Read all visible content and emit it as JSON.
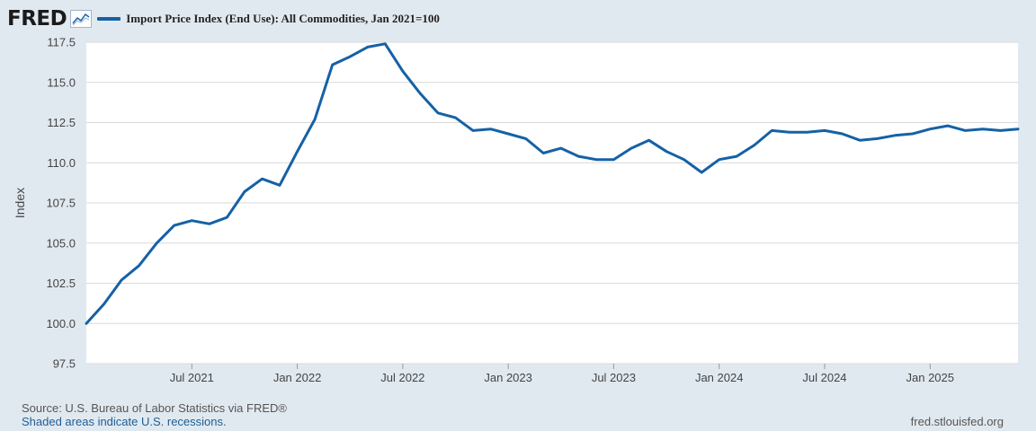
{
  "header": {
    "logo_text": "FRED",
    "logo_icon": "fred-graph-icon"
  },
  "colors": {
    "line": "#1561a5",
    "grid": "#d9d9d9",
    "plot_bg": "#ffffff",
    "page_bg": "#e1e9f0",
    "axis_text": "#444444"
  },
  "footer": {
    "source": "Source: U.S. Bureau of Labor Statistics via FRED®",
    "note": "Shaded areas indicate U.S. recessions.",
    "url": "fred.stlouisfed.org"
  },
  "chart_data": {
    "type": "line",
    "title": "",
    "ylabel": "Index",
    "xlabel": "",
    "ylim": [
      97.5,
      117.5
    ],
    "xlim": [
      "2021-01",
      "2025-06"
    ],
    "grid": true,
    "legend_position": "top-left",
    "yticks": [
      97.5,
      100.0,
      102.5,
      105.0,
      107.5,
      110.0,
      112.5,
      115.0,
      117.5
    ],
    "ytick_labels": [
      "97.5",
      "100.0",
      "102.5",
      "105.0",
      "107.5",
      "110.0",
      "112.5",
      "115.0",
      "117.5"
    ],
    "xticks": [
      "2021-07",
      "2022-01",
      "2022-07",
      "2023-01",
      "2023-07",
      "2024-01",
      "2024-07",
      "2025-01"
    ],
    "xtick_labels": [
      "Jul 2021",
      "Jan 2022",
      "Jul 2022",
      "Jan 2023",
      "Jul 2023",
      "Jan 2024",
      "Jul 2024",
      "Jan 2025"
    ],
    "series": [
      {
        "name": "Import Price Index (End Use): All Commodities, Jan 2021=100",
        "x": [
          "2021-01",
          "2021-02",
          "2021-03",
          "2021-04",
          "2021-05",
          "2021-06",
          "2021-07",
          "2021-08",
          "2021-09",
          "2021-10",
          "2021-11",
          "2021-12",
          "2022-01",
          "2022-02",
          "2022-03",
          "2022-04",
          "2022-05",
          "2022-06",
          "2022-07",
          "2022-08",
          "2022-09",
          "2022-10",
          "2022-11",
          "2022-12",
          "2023-01",
          "2023-02",
          "2023-03",
          "2023-04",
          "2023-05",
          "2023-06",
          "2023-07",
          "2023-08",
          "2023-09",
          "2023-10",
          "2023-11",
          "2023-12",
          "2024-01",
          "2024-02",
          "2024-03",
          "2024-04",
          "2024-05",
          "2024-06",
          "2024-07",
          "2024-08",
          "2024-09",
          "2024-10",
          "2024-11",
          "2024-12",
          "2025-01",
          "2025-02",
          "2025-03",
          "2025-04",
          "2025-05",
          "2025-06"
        ],
        "values": [
          100.0,
          101.2,
          102.7,
          103.6,
          105.0,
          106.1,
          106.4,
          106.2,
          106.6,
          108.2,
          109.0,
          108.6,
          110.7,
          112.7,
          116.1,
          116.6,
          117.2,
          117.4,
          115.7,
          114.3,
          113.1,
          112.8,
          112.0,
          112.1,
          111.8,
          111.5,
          110.6,
          110.9,
          110.4,
          110.2,
          110.2,
          110.9,
          111.4,
          110.7,
          110.2,
          109.4,
          110.2,
          110.4,
          111.1,
          112.0,
          111.9,
          111.9,
          112.0,
          111.8,
          111.4,
          111.5,
          111.7,
          111.8,
          112.1,
          112.3,
          112.0,
          112.1,
          112.0,
          112.1
        ]
      }
    ]
  }
}
